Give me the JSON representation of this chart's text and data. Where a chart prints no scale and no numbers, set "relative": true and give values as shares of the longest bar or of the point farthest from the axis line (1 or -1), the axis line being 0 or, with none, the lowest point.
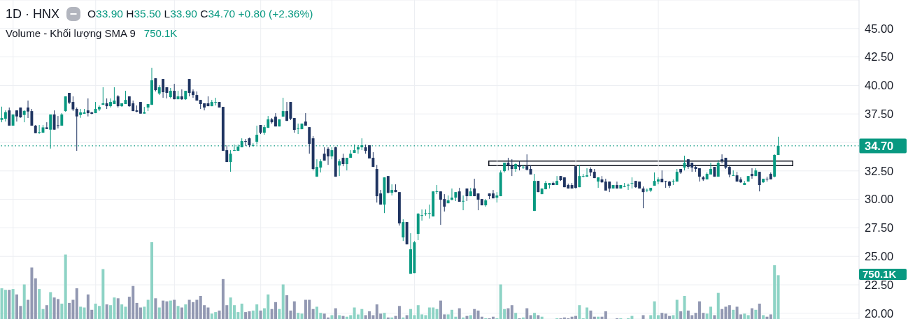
{
  "chart_data": [
    {
      "type": "candlestick",
      "title": "1D · HNX",
      "subtitle": "O33.90 H35.50 L33.90 C34.70 +0.80 (+2.36%)",
      "categories": [
        null,
        null,
        null,
        null,
        null,
        null,
        null,
        null,
        null,
        null,
        null,
        null,
        null,
        null,
        null,
        null,
        null,
        null,
        null,
        null,
        null,
        null,
        null,
        null,
        null,
        null,
        null,
        null,
        null,
        null,
        null,
        null,
        null,
        null,
        null,
        null,
        null,
        null,
        null,
        null,
        null,
        null,
        null,
        null,
        null,
        null,
        null,
        null,
        null,
        null,
        null,
        null,
        null,
        null,
        null,
        null,
        null,
        null,
        null,
        null,
        null,
        null,
        null,
        null,
        null,
        null,
        null,
        null,
        null,
        null,
        null,
        null,
        null,
        null,
        null,
        null,
        null,
        null,
        null,
        null,
        null,
        null,
        null,
        null,
        null,
        null,
        null,
        null,
        null,
        null,
        null,
        null,
        null,
        null,
        null,
        null,
        null,
        null,
        null,
        null,
        null,
        null,
        null,
        null,
        null,
        null,
        null,
        null,
        null,
        null,
        null,
        null,
        null,
        null,
        null,
        null,
        null,
        null,
        null,
        null,
        null,
        null,
        null,
        null,
        null,
        null,
        null,
        null,
        null,
        null,
        null,
        null,
        null,
        null,
        null,
        null,
        null,
        null,
        null,
        null,
        null,
        null,
        null,
        null,
        null,
        null,
        null,
        null,
        null,
        null,
        null,
        null,
        null,
        null,
        null,
        null,
        null,
        null,
        null,
        null,
        null,
        null,
        null,
        null,
        null,
        null,
        null,
        null,
        null,
        null,
        null,
        null,
        null,
        null,
        null,
        null,
        null,
        null,
        null,
        null,
        null,
        null,
        null,
        null,
        null,
        null,
        null,
        null,
        null,
        null,
        null,
        null,
        null,
        null,
        null,
        null,
        null,
        null,
        null,
        null,
        null,
        null,
        null,
        null,
        null,
        null,
        null,
        null,
        null,
        null,
        null,
        null,
        null,
        null,
        null,
        null,
        null,
        null,
        null,
        null,
        null,
        null,
        null,
        null,
        null,
        null,
        null,
        null,
        null
      ],
      "ohlc": [
        [
          36.98,
          38.14,
          36.77,
          37.14
        ],
        [
          37.08,
          37.81,
          36.83,
          37.65
        ],
        [
          37.81,
          38.06,
          36.47,
          36.47
        ],
        [
          36.47,
          37.45,
          36.47,
          37.45
        ],
        [
          37.81,
          37.81,
          36.83,
          37.28
        ],
        [
          38.06,
          38.06,
          37.16,
          37.2
        ],
        [
          37.41,
          37.81,
          36.77,
          37.77
        ],
        [
          38.06,
          38.67,
          37.14,
          37.71
        ],
        [
          37.75,
          37.94,
          36.47,
          36.47
        ],
        [
          36.47,
          36.53,
          35.81,
          35.81
        ],
        [
          35.87,
          36.53,
          35.75,
          35.91
        ],
        [
          35.85,
          36.53,
          35.85,
          36.32
        ],
        [
          36.32,
          36.77,
          36.18,
          36.18
        ],
        [
          36.12,
          37.45,
          34.46,
          37.45
        ],
        [
          37.45,
          37.81,
          36.12,
          36.12
        ],
        [
          36.51,
          37.32,
          36.22,
          36.47
        ],
        [
          36.47,
          37.57,
          36.47,
          37.45
        ],
        [
          37.75,
          39.04,
          37.69,
          39.04
        ],
        [
          39.35,
          39.35,
          38.37,
          38.49
        ],
        [
          38.55,
          39.04,
          37.75,
          37.9
        ],
        [
          37.94,
          38.06,
          34.26,
          37.28
        ],
        [
          37.41,
          37.94,
          37.16,
          37.63
        ],
        [
          37.51,
          37.94,
          37.51,
          37.63
        ],
        [
          37.81,
          38.86,
          37.28,
          37.57
        ],
        [
          37.63,
          37.69,
          37.47,
          37.51
        ],
        [
          37.57,
          38.55,
          37.57,
          37.94
        ],
        [
          37.9,
          38.24,
          37.75,
          38.12
        ],
        [
          38.3,
          39.84,
          38.3,
          38.43
        ],
        [
          38.43,
          38.86,
          37.94,
          38.18
        ],
        [
          38.18,
          38.86,
          38.06,
          38.55
        ],
        [
          38.37,
          39.84,
          38.37,
          38.67
        ],
        [
          39.04,
          39.16,
          38.06,
          38.18
        ],
        [
          38.18,
          38.43,
          38.12,
          38.43
        ],
        [
          38.37,
          39.53,
          38.37,
          38.73
        ],
        [
          39.04,
          39.04,
          38.12,
          38.18
        ],
        [
          38.43,
          38.67,
          37.75,
          37.75
        ],
        [
          37.81,
          38.24,
          37.65,
          37.69
        ],
        [
          38.55,
          38.55,
          37.53,
          37.53
        ],
        [
          37.53,
          38.12,
          37.53,
          37.65
        ],
        [
          38.06,
          38.37,
          37.75,
          38.37
        ],
        [
          38.3,
          41.55,
          38.3,
          40.45
        ],
        [
          40.63,
          40.63,
          39.47,
          39.59
        ],
        [
          39.29,
          40.02,
          39.16,
          39.84
        ],
        [
          40.57,
          40.57,
          38.92,
          39.41
        ],
        [
          39.84,
          39.84,
          38.86,
          39.35
        ],
        [
          38.98,
          39.78,
          38.86,
          39.53
        ],
        [
          39.53,
          40.14,
          38.79,
          38.79
        ],
        [
          38.79,
          39.53,
          38.79,
          39.04
        ],
        [
          39.04,
          39.65,
          38.73,
          38.79
        ],
        [
          38.79,
          39.53,
          38.73,
          39.53
        ],
        [
          40.57,
          40.57,
          39.04,
          39.35
        ],
        [
          39.47,
          39.65,
          38.92,
          39.16
        ],
        [
          39.16,
          39.47,
          38.67,
          38.67
        ],
        [
          38.73,
          38.73,
          37.94,
          38.37
        ],
        [
          38.43,
          38.43,
          37.81,
          38.06
        ],
        [
          38.43,
          39.04,
          38.18,
          38.18
        ],
        [
          38.18,
          38.73,
          38.18,
          38.55
        ],
        [
          38.51,
          38.92,
          38.24,
          38.55
        ],
        [
          38.55,
          38.55,
          38.06,
          38.06
        ],
        [
          38.12,
          38.12,
          34.26,
          34.26
        ],
        [
          34.32,
          34.75,
          33.28,
          33.28
        ],
        [
          33.28,
          34.32,
          32.42,
          34.01
        ],
        [
          34.3,
          34.81,
          34.26,
          34.32
        ],
        [
          34.26,
          34.81,
          34.26,
          34.63
        ],
        [
          34.57,
          35.36,
          34.57,
          35.12
        ],
        [
          35.12,
          35.3,
          34.69,
          35.06
        ],
        [
          35.36,
          35.42,
          34.57,
          34.75
        ],
        [
          34.73,
          34.93,
          34.63,
          34.77
        ],
        [
          35.06,
          36.47,
          34.81,
          35.67
        ],
        [
          36.53,
          36.53,
          35.73,
          35.85
        ],
        [
          35.85,
          36.53,
          35.67,
          36.34
        ],
        [
          36.28,
          37.32,
          36.28,
          37.02
        ],
        [
          37.02,
          37.14,
          36.65,
          36.77
        ],
        [
          37.26,
          37.57,
          36.4,
          36.4
        ],
        [
          36.4,
          37.02,
          36.4,
          37.02
        ],
        [
          37.26,
          38.92,
          37.26,
          37.75
        ],
        [
          37.75,
          38.55,
          36.89,
          36.89
        ],
        [
          38.55,
          38.55,
          36.96,
          37.08
        ],
        [
          37.14,
          37.14,
          35.85,
          36.1
        ],
        [
          36.2,
          36.65,
          35.73,
          36.24
        ],
        [
          36.16,
          36.65,
          36.16,
          36.65
        ],
        [
          36.83,
          37.57,
          36.47,
          36.47
        ],
        [
          36.34,
          36.34,
          34.01,
          34.87
        ],
        [
          35.36,
          35.55,
          32.54,
          32.67
        ],
        [
          31.99,
          33.52,
          31.99,
          32.85
        ],
        [
          32.79,
          33.52,
          32.36,
          33.34
        ],
        [
          34.01,
          34.57,
          33.4,
          33.4
        ],
        [
          34.44,
          34.57,
          33.03,
          33.77
        ],
        [
          33.77,
          34.57,
          33.52,
          34.32
        ],
        [
          34.57,
          34.63,
          31.99,
          31.99
        ],
        [
          32.97,
          33.52,
          32.05,
          33.34
        ],
        [
          33.65,
          34.01,
          32.91,
          33.1
        ],
        [
          33.1,
          33.65,
          32.54,
          33.65
        ],
        [
          33.65,
          34.32,
          33.65,
          34.01
        ],
        [
          34.08,
          34.81,
          34.08,
          34.32
        ],
        [
          34.38,
          34.75,
          34.01,
          34.57
        ],
        [
          34.57,
          35.36,
          34.32,
          34.75
        ],
        [
          34.57,
          34.81,
          34.01,
          34.26
        ],
        [
          34.75,
          34.75,
          33.59,
          33.59
        ],
        [
          33.65,
          34.14,
          32.85,
          32.85
        ],
        [
          32.67,
          33.03,
          29.72,
          30.28
        ],
        [
          30.52,
          30.83,
          29.54,
          29.54
        ],
        [
          29.54,
          31.93,
          28.8,
          31.93
        ],
        [
          32.05,
          32.05,
          30.52,
          30.58
        ],
        [
          30.58,
          31.32,
          30.34,
          30.83
        ],
        [
          30.83,
          31.32,
          30.64,
          30.64
        ],
        [
          30.64,
          30.64,
          27.7,
          27.89
        ],
        [
          26.66,
          28.25,
          26.35,
          28.01
        ],
        [
          28.01,
          28.01,
          26.05,
          26.05
        ],
        [
          23.47,
          27.03,
          23.47,
          25.62
        ],
        [
          23.53,
          26.35,
          23.53,
          26.23
        ],
        [
          26.97,
          28.8,
          26.42,
          28.74
        ],
        [
          28.58,
          29.11,
          28.13,
          28.62
        ],
        [
          28.7,
          29.11,
          28.56,
          28.78
        ],
        [
          28.76,
          29.54,
          28.31,
          28.8
        ],
        [
          28.5,
          30.7,
          28.5,
          30.7
        ],
        [
          30.68,
          31.26,
          30.46,
          30.72
        ],
        [
          30.7,
          30.7,
          27.76,
          29.97
        ],
        [
          30.03,
          30.46,
          28.93,
          29.36
        ],
        [
          29.66,
          30.34,
          29.66,
          29.91
        ],
        [
          29.97,
          30.95,
          29.91,
          30.15
        ],
        [
          30.15,
          30.64,
          29.85,
          30.64
        ],
        [
          30.7,
          31.01,
          29.79,
          29.79
        ],
        [
          29.83,
          30.34,
          29.05,
          29.87
        ],
        [
          30.95,
          30.95,
          29.85,
          30.28
        ],
        [
          30.28,
          31.01,
          30.28,
          30.7
        ],
        [
          30.95,
          31.81,
          30.28,
          30.28
        ],
        [
          30.52,
          30.52,
          29.05,
          29.97
        ],
        [
          30.03,
          30.03,
          29.48,
          29.48
        ],
        [
          29.48,
          30.03,
          29.36,
          29.91
        ],
        [
          30.52,
          30.52,
          30.03,
          30.28
        ],
        [
          30.52,
          30.83,
          30.09,
          30.09
        ],
        [
          30.15,
          30.64,
          29.72,
          30.34
        ],
        [
          30.28,
          32.54,
          30.28,
          32.36
        ],
        [
          32.48,
          33.22,
          32.36,
          33.22
        ],
        [
          33.22,
          33.65,
          32.54,
          32.97
        ],
        [
          33.03,
          33.52,
          32.05,
          32.67
        ],
        [
          32.67,
          33.16,
          32.42,
          33.1
        ],
        [
          33.03,
          33.4,
          32.54,
          32.85
        ],
        [
          32.83,
          33.03,
          32.67,
          32.87
        ],
        [
          32.91,
          33.95,
          32.54,
          32.6
        ],
        [
          32.67,
          32.97,
          32.18,
          32.18
        ],
        [
          28.99,
          32.24,
          28.99,
          31.62
        ],
        [
          31.62,
          31.62,
          30.64,
          30.64
        ],
        [
          30.46,
          30.95,
          30.46,
          30.95
        ],
        [
          30.89,
          31.62,
          30.89,
          31.44
        ],
        [
          31.26,
          31.44,
          30.95,
          31.44
        ],
        [
          31.44,
          31.56,
          31.26,
          31.26
        ],
        [
          31.26,
          32.05,
          31.26,
          31.62
        ],
        [
          32.05,
          32.05,
          31.62,
          31.69
        ],
        [
          31.93,
          31.93,
          31.07,
          31.07
        ],
        [
          31.26,
          31.38,
          30.95,
          30.95
        ],
        [
          31.26,
          31.44,
          30.95,
          30.95
        ],
        [
          32.91,
          32.91,
          30.95,
          31.01
        ],
        [
          31.07,
          33.03,
          31.07,
          32.05
        ],
        [
          32.01,
          32.24,
          31.93,
          32.05
        ],
        [
          31.99,
          32.73,
          31.99,
          32.11
        ],
        [
          32.67,
          32.81,
          32.05,
          32.36
        ],
        [
          32.42,
          32.67,
          31.87,
          31.87
        ],
        [
          31.56,
          31.93,
          31.01,
          31.93
        ],
        [
          31.75,
          32.05,
          31.44,
          31.5
        ],
        [
          31.56,
          31.81,
          30.77,
          30.77
        ],
        [
          31.56,
          31.56,
          30.64,
          30.95
        ],
        [
          30.95,
          31.26,
          30.95,
          31.26
        ],
        [
          31.26,
          31.56,
          30.95,
          30.95
        ],
        [
          30.95,
          31.26,
          30.95,
          31.26
        ],
        [
          31.11,
          31.44,
          31.07,
          31.15
        ],
        [
          31.24,
          31.38,
          30.83,
          31.28
        ],
        [
          31.4,
          31.93,
          30.95,
          31.44
        ],
        [
          31.62,
          31.62,
          31.01,
          31.07
        ],
        [
          31.56,
          31.56,
          30.95,
          30.95
        ],
        [
          30.95,
          31.13,
          29.23,
          30.64
        ],
        [
          30.81,
          30.95,
          30.64,
          30.85
        ],
        [
          30.77,
          31.01,
          30.64,
          31.01
        ],
        [
          31.2,
          32.36,
          31.2,
          31.62
        ],
        [
          31.56,
          31.93,
          31.32,
          31.75
        ],
        [
          31.81,
          32.54,
          31.5,
          31.5
        ],
        [
          31.62,
          31.62,
          31.01,
          31.56
        ],
        [
          31.56,
          31.62,
          31.01,
          31.2
        ],
        [
          31.54,
          31.75,
          31.26,
          31.58
        ],
        [
          31.56,
          32.67,
          31.56,
          32.42
        ],
        [
          32.67,
          32.67,
          32.24,
          32.36
        ],
        [
          32.79,
          33.83,
          32.54,
          33.22
        ],
        [
          33.52,
          33.52,
          32.67,
          32.85
        ],
        [
          33.22,
          33.22,
          32.42,
          32.79
        ],
        [
          32.85,
          33.03,
          32.42,
          32.67
        ],
        [
          32.73,
          32.73,
          31.56,
          31.99
        ],
        [
          31.93,
          32.05,
          31.62,
          31.75
        ],
        [
          31.75,
          32.36,
          31.75,
          32.24
        ],
        [
          32.18,
          33.22,
          32.18,
          32.67
        ],
        [
          32.85,
          32.85,
          31.99,
          31.99
        ],
        [
          31.99,
          33.46,
          31.99,
          33.22
        ],
        [
          33.52,
          33.95,
          33.16,
          33.4
        ],
        [
          33.65,
          33.65,
          32.67,
          32.79
        ],
        [
          32.85,
          32.91,
          31.93,
          32.18
        ],
        [
          32.09,
          32.54,
          32.07,
          32.13
        ],
        [
          32.11,
          32.42,
          31.56,
          31.56
        ],
        [
          31.75,
          31.93,
          31.44,
          31.5
        ],
        [
          31.26,
          31.62,
          31.26,
          31.44
        ],
        [
          31.56,
          32.05,
          31.56,
          32.05
        ],
        [
          32.24,
          32.73,
          31.81,
          32.05
        ],
        [
          32.05,
          32.73,
          32.05,
          32.54
        ],
        [
          32.42,
          32.42,
          30.7,
          31.26
        ],
        [
          31.5,
          31.81,
          31.44,
          31.81
        ],
        [
          31.81,
          31.99,
          31.56,
          31.75
        ],
        [
          32.24,
          32.36,
          31.75,
          31.75
        ],
        [
          31.99,
          33.95,
          31.93,
          33.9
        ],
        [
          33.9,
          35.5,
          33.9,
          34.7
        ],
        null,
        null,
        null,
        null,
        null,
        null,
        null,
        null,
        null,
        null,
        null,
        null,
        null,
        null,
        null,
        null,
        null,
        null,
        null,
        null,
        null
      ],
      "colors": [
        "#089981",
        "#089981",
        "#1f3461",
        "#089981",
        "#1f3461",
        "#1f3461",
        "#089981",
        "#1f3461",
        "#1f3461",
        "#1f3461",
        "#089981",
        "#089981",
        "#1f3461",
        "#089981",
        "#1f3461",
        "#1f3461",
        "#089981",
        "#089981",
        "#1f3461",
        "#1f3461",
        "#1f3461",
        "#089981",
        "#089981",
        "#1f3461",
        "#1f3461",
        "#089981",
        "#089981",
        "#089981",
        "#1f3461",
        "#089981",
        "#089981",
        "#1f3461",
        "#089981",
        "#089981",
        "#1f3461",
        "#1f3461",
        "#1f3461",
        "#1f3461",
        "#089981",
        "#089981",
        "#089981",
        "#1f3461",
        "#089981",
        "#1f3461",
        "#1f3461",
        "#089981",
        "#1f3461",
        "#089981",
        "#1f3461",
        "#089981",
        "#1f3461",
        "#1f3461",
        "#1f3461",
        "#1f3461",
        "#1f3461",
        "#1f3461",
        "#089981",
        "#089981",
        "#1f3461",
        "#1f3461",
        "#1f3461",
        "#089981",
        "#089981",
        "#089981",
        "#089981",
        "#1f3461",
        "#1f3461",
        "#089981",
        "#089981",
        "#1f3461",
        "#089981",
        "#089981",
        "#1f3461",
        "#1f3461",
        "#089981",
        "#089981",
        "#1f3461",
        "#1f3461",
        "#1f3461",
        "#089981",
        "#089981",
        "#1f3461",
        "#1f3461",
        "#1f3461",
        "#089981",
        "#089981",
        "#1f3461",
        "#1f3461",
        "#089981",
        "#1f3461",
        "#089981",
        "#1f3461",
        "#089981",
        "#089981",
        "#089981",
        "#089981",
        "#089981",
        "#1f3461",
        "#1f3461",
        "#1f3461",
        "#1f3461",
        "#1f3461",
        "#089981",
        "#1f3461",
        "#089981",
        "#1f3461",
        "#1f3461",
        "#089981",
        "#1f3461",
        "#089981",
        "#089981",
        "#089981",
        "#089981",
        "#089981",
        "#089981",
        "#089981",
        "#089981",
        "#1f3461",
        "#1f3461",
        "#089981",
        "#089981",
        "#089981",
        "#1f3461",
        "#089981",
        "#1f3461",
        "#089981",
        "#1f3461",
        "#1f3461",
        "#1f3461",
        "#089981",
        "#1f3461",
        "#1f3461",
        "#089981",
        "#089981",
        "#089981",
        "#1f3461",
        "#1f3461",
        "#089981",
        "#1f3461",
        "#089981",
        "#1f3461",
        "#1f3461",
        "#089981",
        "#1f3461",
        "#089981",
        "#089981",
        "#089981",
        "#1f3461",
        "#089981",
        "#1f3461",
        "#1f3461",
        "#1f3461",
        "#1f3461",
        "#1f3461",
        "#089981",
        "#089981",
        "#089981",
        "#1f3461",
        "#1f3461",
        "#089981",
        "#1f3461",
        "#1f3461",
        "#1f3461",
        "#089981",
        "#1f3461",
        "#089981",
        "#089981",
        "#089981",
        "#089981",
        "#1f3461",
        "#1f3461",
        "#1f3461",
        "#089981",
        "#089981",
        "#089981",
        "#089981",
        "#1f3461",
        "#1f3461",
        "#1f3461",
        "#089981",
        "#089981",
        "#1f3461",
        "#089981",
        "#1f3461",
        "#1f3461",
        "#1f3461",
        "#1f3461",
        "#1f3461",
        "#089981",
        "#089981",
        "#1f3461",
        "#089981",
        "#1f3461",
        "#1f3461",
        "#1f3461",
        "#089981",
        "#1f3461",
        "#1f3461",
        "#089981",
        "#089981",
        "#1f3461",
        "#089981",
        "#1f3461",
        "#089981",
        "#1f3461",
        "#1f3461",
        "#089981",
        "#089981",
        null,
        null,
        null,
        null,
        null,
        null,
        null,
        null,
        null,
        null,
        null,
        null,
        null,
        null,
        null,
        null,
        null,
        null,
        null,
        null,
        null
      ],
      "ylim": [
        19.5,
        47.5
      ],
      "yticks": [
        {
          "value": 20,
          "label": "20.00"
        },
        {
          "value": 22.5,
          "label": "22.50"
        },
        {
          "value": 25,
          "label": "25.00"
        },
        {
          "value": 27.5,
          "label": "27.50"
        },
        {
          "value": 30,
          "label": "30.00"
        },
        {
          "value": 32.5,
          "label": "32.50"
        },
        {
          "value": 35,
          "label": null
        },
        {
          "value": 37.5,
          "label": "37.50"
        },
        {
          "value": 40,
          "label": "40.00"
        },
        {
          "value": 42.5,
          "label": "42.50"
        },
        {
          "value": 45,
          "label": "45.00"
        }
      ],
      "grid": true,
      "ref_lines": [
        {
          "axis": "y",
          "value": 34.7,
          "label": "34.70",
          "color": "#089981",
          "line_style": "dotted"
        }
      ]
    },
    {
      "type": "bar",
      "title": "Volume - Khối lượng SMA 9",
      "relative": true,
      "categories": [
        null,
        null,
        null,
        null,
        null,
        null,
        null,
        null,
        null,
        null,
        null,
        null,
        null,
        null,
        null,
        null,
        null,
        null,
        null,
        null,
        null,
        null,
        null,
        null,
        null,
        null,
        null,
        null,
        null,
        null,
        null,
        null,
        null,
        null,
        null,
        null,
        null,
        null,
        null,
        null,
        null,
        null,
        null,
        null,
        null,
        null,
        null,
        null,
        null,
        null,
        null,
        null,
        null,
        null,
        null,
        null,
        null,
        null,
        null,
        null,
        null,
        null,
        null,
        null,
        null,
        null,
        null,
        null,
        null,
        null,
        null,
        null,
        null,
        null,
        null,
        null,
        null,
        null,
        null,
        null,
        null,
        null,
        null,
        null,
        null,
        null,
        null,
        null,
        null,
        null,
        null,
        null,
        null,
        null,
        null,
        null,
        null,
        null,
        null,
        null,
        null,
        null,
        null,
        null,
        null,
        null,
        null,
        null,
        null,
        null,
        null,
        null,
        null,
        null,
        null,
        null,
        null,
        null,
        null,
        null,
        null,
        null,
        null,
        null,
        null,
        null,
        null,
        null,
        null,
        null,
        null,
        null,
        null,
        null,
        null,
        null,
        null,
        null,
        null,
        null,
        null,
        null,
        null,
        null,
        null,
        null,
        null,
        null,
        null,
        null,
        null,
        null,
        null,
        null,
        null,
        null,
        null,
        null,
        null,
        null,
        null,
        null,
        null,
        null,
        null,
        null,
        null,
        null,
        null,
        null,
        null,
        null,
        null,
        null,
        null,
        null,
        null,
        null,
        null,
        null,
        null,
        null,
        null,
        null,
        null,
        null,
        null,
        null,
        null,
        null,
        null,
        null,
        null,
        null,
        null,
        null,
        null,
        null,
        null,
        null,
        null,
        null,
        null,
        null,
        null,
        null,
        null,
        null,
        null,
        null,
        null,
        null,
        null,
        null,
        null,
        null,
        null,
        null,
        null,
        null,
        null,
        null,
        null,
        null,
        null,
        null,
        null,
        null,
        null
      ],
      "values": [
        0.4,
        0.38,
        0.38,
        0.39,
        0.32,
        0.17,
        0.45,
        0.25,
        0.67,
        0.53,
        0.39,
        0.13,
        0.18,
        0.35,
        0.28,
        0.26,
        0.2,
        0.84,
        0.21,
        0.25,
        0.4,
        0.16,
        0.15,
        0.32,
        0.12,
        0.2,
        0.17,
        0.65,
        0.19,
        0.18,
        0.28,
        0.27,
        0.19,
        0.16,
        0.29,
        0.43,
        0.21,
        0.15,
        0.16,
        0.25,
        1,
        0.27,
        0.15,
        0.24,
        0.23,
        0.24,
        0.25,
        0.17,
        0.15,
        0.19,
        0.25,
        0.22,
        0.25,
        0.3,
        0.18,
        0.15,
        0.07,
        0.09,
        0.11,
        0.52,
        0.18,
        0.28,
        0.18,
        0.09,
        0.2,
        0.09,
        0.1,
        0.11,
        0.19,
        0.11,
        0.14,
        0.32,
        0.13,
        0.22,
        0.13,
        0.45,
        0.31,
        0.11,
        0.23,
        0.08,
        0.07,
        0.25,
        0.25,
        0.13,
        0.16,
        0.08,
        0.07,
        0.02,
        0.05,
        0.14,
        0.05,
        0.04,
        0.03,
        0.05,
        0.15,
        0.06,
        0.13,
        0.05,
        0.1,
        0.05,
        0.19,
        0.07,
        0.08,
        0.02,
        0.02,
        0.04,
        0.17,
        0.02,
        0.05,
        0.13,
        0.05,
        0.18,
        0.06,
        0.05,
        0.15,
        0.15,
        0.13,
        0.24,
        0.06,
        0.06,
        0.12,
        0.03,
        0.14,
        0.02,
        0.04,
        0.05,
        0.13,
        0.11,
        0.03,
        0.01,
        0.01,
        0.03,
        0.01,
        0.45,
        0.13,
        0.14,
        0.18,
        0.08,
        0.01,
        0.02,
        0.14,
        0.05,
        0.08,
        0.05,
        0.03,
        null,
        null,
        null,
        0.01,
        0.01,
        0.02,
        0.01,
        0.03,
        0.04,
        0.18,
        0.01,
        0.15,
        0.11,
        0.03,
        0.03,
        0.03,
        0.1,
        null,
        null,
        0.01,
        0.01,
        null,
        0.01,
        0.04,
        null,
        null,
        0.05,
        null,
        0.05,
        0.23,
        0.05,
        0.08,
        0.07,
        0.04,
        0.05,
        0.25,
        0.1,
        0.3,
        0.11,
        0.05,
        0.08,
        0.23,
        0.08,
        0.07,
        0.16,
        0.05,
        0.34,
        0.13,
        0.16,
        0.18,
        0.12,
        0.16,
        0.06,
        0.07,
        0.05,
        0.14,
        0.12,
        0.2,
        0.05,
        0.03,
        0.06,
        0.7,
        0.57,
        null,
        null,
        null,
        null,
        null,
        null,
        null,
        null,
        null,
        null,
        null,
        null,
        null,
        null,
        null,
        null,
        null,
        null,
        null,
        null,
        null
      ],
      "colors": [
        "#8dd3c5",
        "#8dd3c5",
        "#9298b2",
        "#8dd3c5",
        "#9298b2",
        "#9298b2",
        "#8dd3c5",
        "#9298b2",
        "#9298b2",
        "#9298b2",
        "#8dd3c5",
        "#8dd3c5",
        "#9298b2",
        "#8dd3c5",
        "#9298b2",
        "#9298b2",
        "#8dd3c5",
        "#8dd3c5",
        "#9298b2",
        "#9298b2",
        "#9298b2",
        "#8dd3c5",
        "#8dd3c5",
        "#9298b2",
        "#9298b2",
        "#8dd3c5",
        "#8dd3c5",
        "#8dd3c5",
        "#9298b2",
        "#8dd3c5",
        "#8dd3c5",
        "#9298b2",
        "#8dd3c5",
        "#8dd3c5",
        "#9298b2",
        "#9298b2",
        "#9298b2",
        "#9298b2",
        "#8dd3c5",
        "#8dd3c5",
        "#8dd3c5",
        "#9298b2",
        "#8dd3c5",
        "#9298b2",
        "#9298b2",
        "#8dd3c5",
        "#9298b2",
        "#8dd3c5",
        "#9298b2",
        "#8dd3c5",
        "#9298b2",
        "#9298b2",
        "#9298b2",
        "#9298b2",
        "#9298b2",
        "#9298b2",
        "#8dd3c5",
        "#8dd3c5",
        "#9298b2",
        "#9298b2",
        "#9298b2",
        "#8dd3c5",
        "#8dd3c5",
        "#8dd3c5",
        "#8dd3c5",
        "#9298b2",
        "#9298b2",
        "#8dd3c5",
        "#8dd3c5",
        "#9298b2",
        "#8dd3c5",
        "#8dd3c5",
        "#9298b2",
        "#9298b2",
        "#8dd3c5",
        "#8dd3c5",
        "#9298b2",
        "#9298b2",
        "#9298b2",
        "#8dd3c5",
        "#8dd3c5",
        "#9298b2",
        "#9298b2",
        "#9298b2",
        "#8dd3c5",
        "#8dd3c5",
        "#9298b2",
        "#9298b2",
        "#8dd3c5",
        "#9298b2",
        "#8dd3c5",
        "#9298b2",
        "#8dd3c5",
        "#8dd3c5",
        "#8dd3c5",
        "#8dd3c5",
        "#8dd3c5",
        "#9298b2",
        "#9298b2",
        "#9298b2",
        "#9298b2",
        "#9298b2",
        "#8dd3c5",
        "#9298b2",
        "#8dd3c5",
        "#9298b2",
        "#9298b2",
        "#8dd3c5",
        "#9298b2",
        "#8dd3c5",
        "#8dd3c5",
        "#8dd3c5",
        "#8dd3c5",
        "#8dd3c5",
        "#8dd3c5",
        "#8dd3c5",
        "#8dd3c5",
        "#9298b2",
        "#9298b2",
        "#8dd3c5",
        "#8dd3c5",
        "#8dd3c5",
        "#9298b2",
        "#8dd3c5",
        "#9298b2",
        "#8dd3c5",
        "#9298b2",
        "#9298b2",
        "#9298b2",
        "#8dd3c5",
        "#9298b2",
        "#9298b2",
        "#8dd3c5",
        "#8dd3c5",
        "#8dd3c5",
        "#9298b2",
        "#9298b2",
        "#8dd3c5",
        "#9298b2",
        "#8dd3c5",
        "#9298b2",
        "#9298b2",
        "#8dd3c5",
        "#9298b2",
        "#8dd3c5",
        "#8dd3c5",
        "#8dd3c5",
        "#9298b2",
        "#8dd3c5",
        "#9298b2",
        "#9298b2",
        "#9298b2",
        "#9298b2",
        "#9298b2",
        "#8dd3c5",
        "#8dd3c5",
        "#8dd3c5",
        "#9298b2",
        "#9298b2",
        "#8dd3c5",
        "#9298b2",
        "#9298b2",
        "#9298b2",
        "#8dd3c5",
        "#9298b2",
        "#8dd3c5",
        "#8dd3c5",
        "#8dd3c5",
        "#8dd3c5",
        "#9298b2",
        "#9298b2",
        "#9298b2",
        "#8dd3c5",
        "#8dd3c5",
        "#8dd3c5",
        "#8dd3c5",
        "#9298b2",
        "#9298b2",
        "#9298b2",
        "#8dd3c5",
        "#8dd3c5",
        "#9298b2",
        "#8dd3c5",
        "#9298b2",
        "#9298b2",
        "#9298b2",
        "#9298b2",
        "#9298b2",
        "#8dd3c5",
        "#8dd3c5",
        "#9298b2",
        "#8dd3c5",
        "#9298b2",
        "#9298b2",
        "#9298b2",
        "#8dd3c5",
        "#9298b2",
        "#9298b2",
        "#8dd3c5",
        "#8dd3c5",
        "#9298b2",
        "#8dd3c5",
        "#9298b2",
        "#8dd3c5",
        "#9298b2",
        "#9298b2",
        "#8dd3c5",
        "#8dd3c5",
        null,
        null,
        null,
        null,
        null,
        null,
        null,
        null,
        null,
        null,
        null,
        null,
        null,
        null,
        null,
        null,
        null,
        null,
        null,
        null,
        null
      ],
      "annotations": [
        "750.1K",
        "750.1K"
      ]
    }
  ]
}
